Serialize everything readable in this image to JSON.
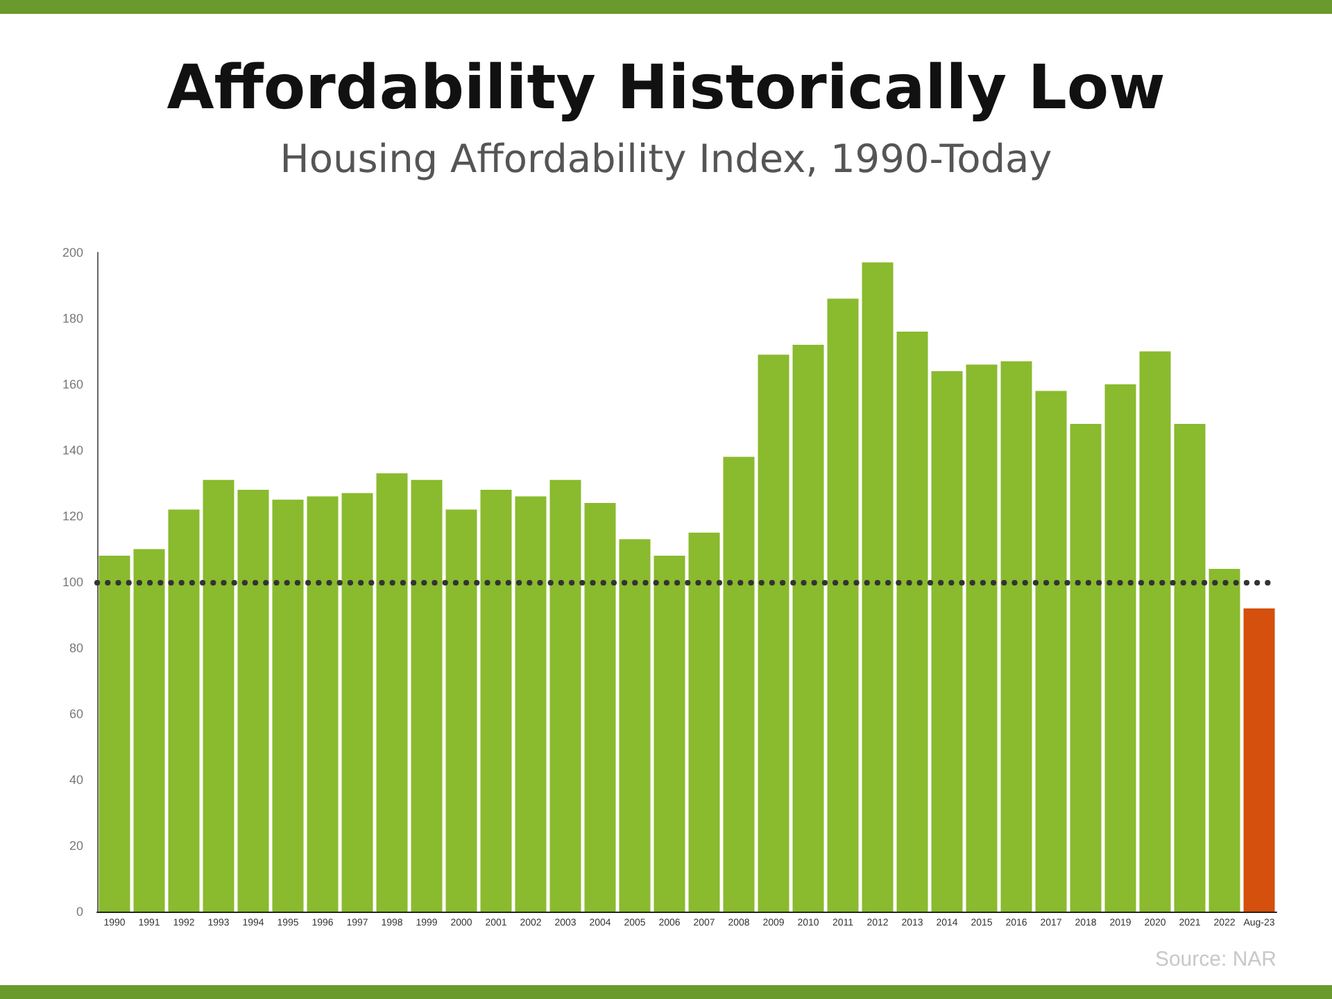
{
  "chart_data": {
    "type": "bar",
    "title": "Affordability Historically Low",
    "subtitle": "Housing Affordability Index, 1990-Today",
    "categories": [
      "1990",
      "1991",
      "1992",
      "1993",
      "1994",
      "1995",
      "1996",
      "1997",
      "1998",
      "1999",
      "2000",
      "2001",
      "2002",
      "2003",
      "2004",
      "2005",
      "2006",
      "2007",
      "2008",
      "2009",
      "2010",
      "2011",
      "2012",
      "2013",
      "2014",
      "2015",
      "2016",
      "2017",
      "2018",
      "2019",
      "2020",
      "2021",
      "2022",
      "Aug-23"
    ],
    "values": [
      108,
      110,
      122,
      131,
      128,
      125,
      126,
      127,
      133,
      131,
      122,
      128,
      126,
      131,
      124,
      113,
      108,
      115,
      138,
      169,
      172,
      186,
      197,
      176,
      164,
      166,
      167,
      158,
      148,
      160,
      170,
      148,
      104,
      92
    ],
    "colors": [
      "#8aba2e",
      "#8aba2e",
      "#8aba2e",
      "#8aba2e",
      "#8aba2e",
      "#8aba2e",
      "#8aba2e",
      "#8aba2e",
      "#8aba2e",
      "#8aba2e",
      "#8aba2e",
      "#8aba2e",
      "#8aba2e",
      "#8aba2e",
      "#8aba2e",
      "#8aba2e",
      "#8aba2e",
      "#8aba2e",
      "#8aba2e",
      "#8aba2e",
      "#8aba2e",
      "#8aba2e",
      "#8aba2e",
      "#8aba2e",
      "#8aba2e",
      "#8aba2e",
      "#8aba2e",
      "#8aba2e",
      "#8aba2e",
      "#8aba2e",
      "#8aba2e",
      "#8aba2e",
      "#8aba2e",
      "#d4500c"
    ],
    "ylim": [
      0,
      200
    ],
    "yticks": [
      0,
      20,
      40,
      60,
      80,
      100,
      120,
      140,
      160,
      180,
      200
    ],
    "grid": false,
    "ref_lines": [
      {
        "axis": "y",
        "value": 100,
        "label": null,
        "color": "#333333",
        "line_style": "dotted"
      }
    ],
    "annotations": [
      "Source: NAR"
    ]
  }
}
